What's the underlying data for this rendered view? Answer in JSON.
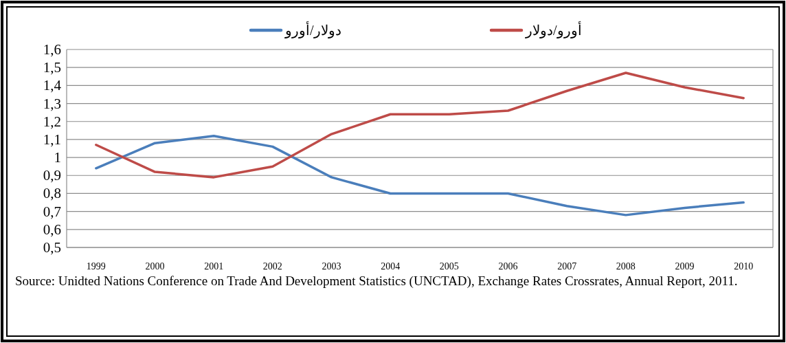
{
  "chart_data": {
    "type": "line",
    "categories": [
      "1999",
      "2000",
      "2001",
      "2002",
      "2003",
      "2004",
      "2005",
      "2006",
      "2007",
      "2008",
      "2009",
      "2010"
    ],
    "series": [
      {
        "name": "دولار/أورو",
        "color": "#4a7ebb",
        "values": [
          0.94,
          1.08,
          1.12,
          1.06,
          0.89,
          0.8,
          0.8,
          0.8,
          0.73,
          0.68,
          0.72,
          0.75
        ]
      },
      {
        "name": "أورو/دولار",
        "color": "#be4b48",
        "values": [
          1.07,
          0.92,
          0.89,
          0.95,
          1.13,
          1.24,
          1.24,
          1.26,
          1.37,
          1.47,
          1.39,
          1.33
        ]
      }
    ],
    "ylim": [
      0.5,
      1.6
    ],
    "yticks": [
      {
        "value": 0.5,
        "label": "0,5"
      },
      {
        "value": 0.6,
        "label": "0,6"
      },
      {
        "value": 0.7,
        "label": "0,7"
      },
      {
        "value": 0.8,
        "label": "0,8"
      },
      {
        "value": 0.9,
        "label": "0,9"
      },
      1,
      {
        "value": 1.1,
        "label": "1,1"
      },
      {
        "value": 1.2,
        "label": "1,2"
      },
      {
        "value": 1.3,
        "label": "1,3"
      },
      {
        "value": 1.4,
        "label": "1,4"
      },
      {
        "value": 1.5,
        "label": "1,5"
      },
      {
        "value": 1.6,
        "label": "1,6"
      }
    ],
    "grid": "y",
    "legend": "top",
    "marker": "none",
    "line_style": "solid",
    "annotations": [
      "Source: Unidted Nations Conference on Trade And Development Statistics (UNCTAD), Exchange Rates Crossrates, Annual Report, 2011."
    ]
  }
}
